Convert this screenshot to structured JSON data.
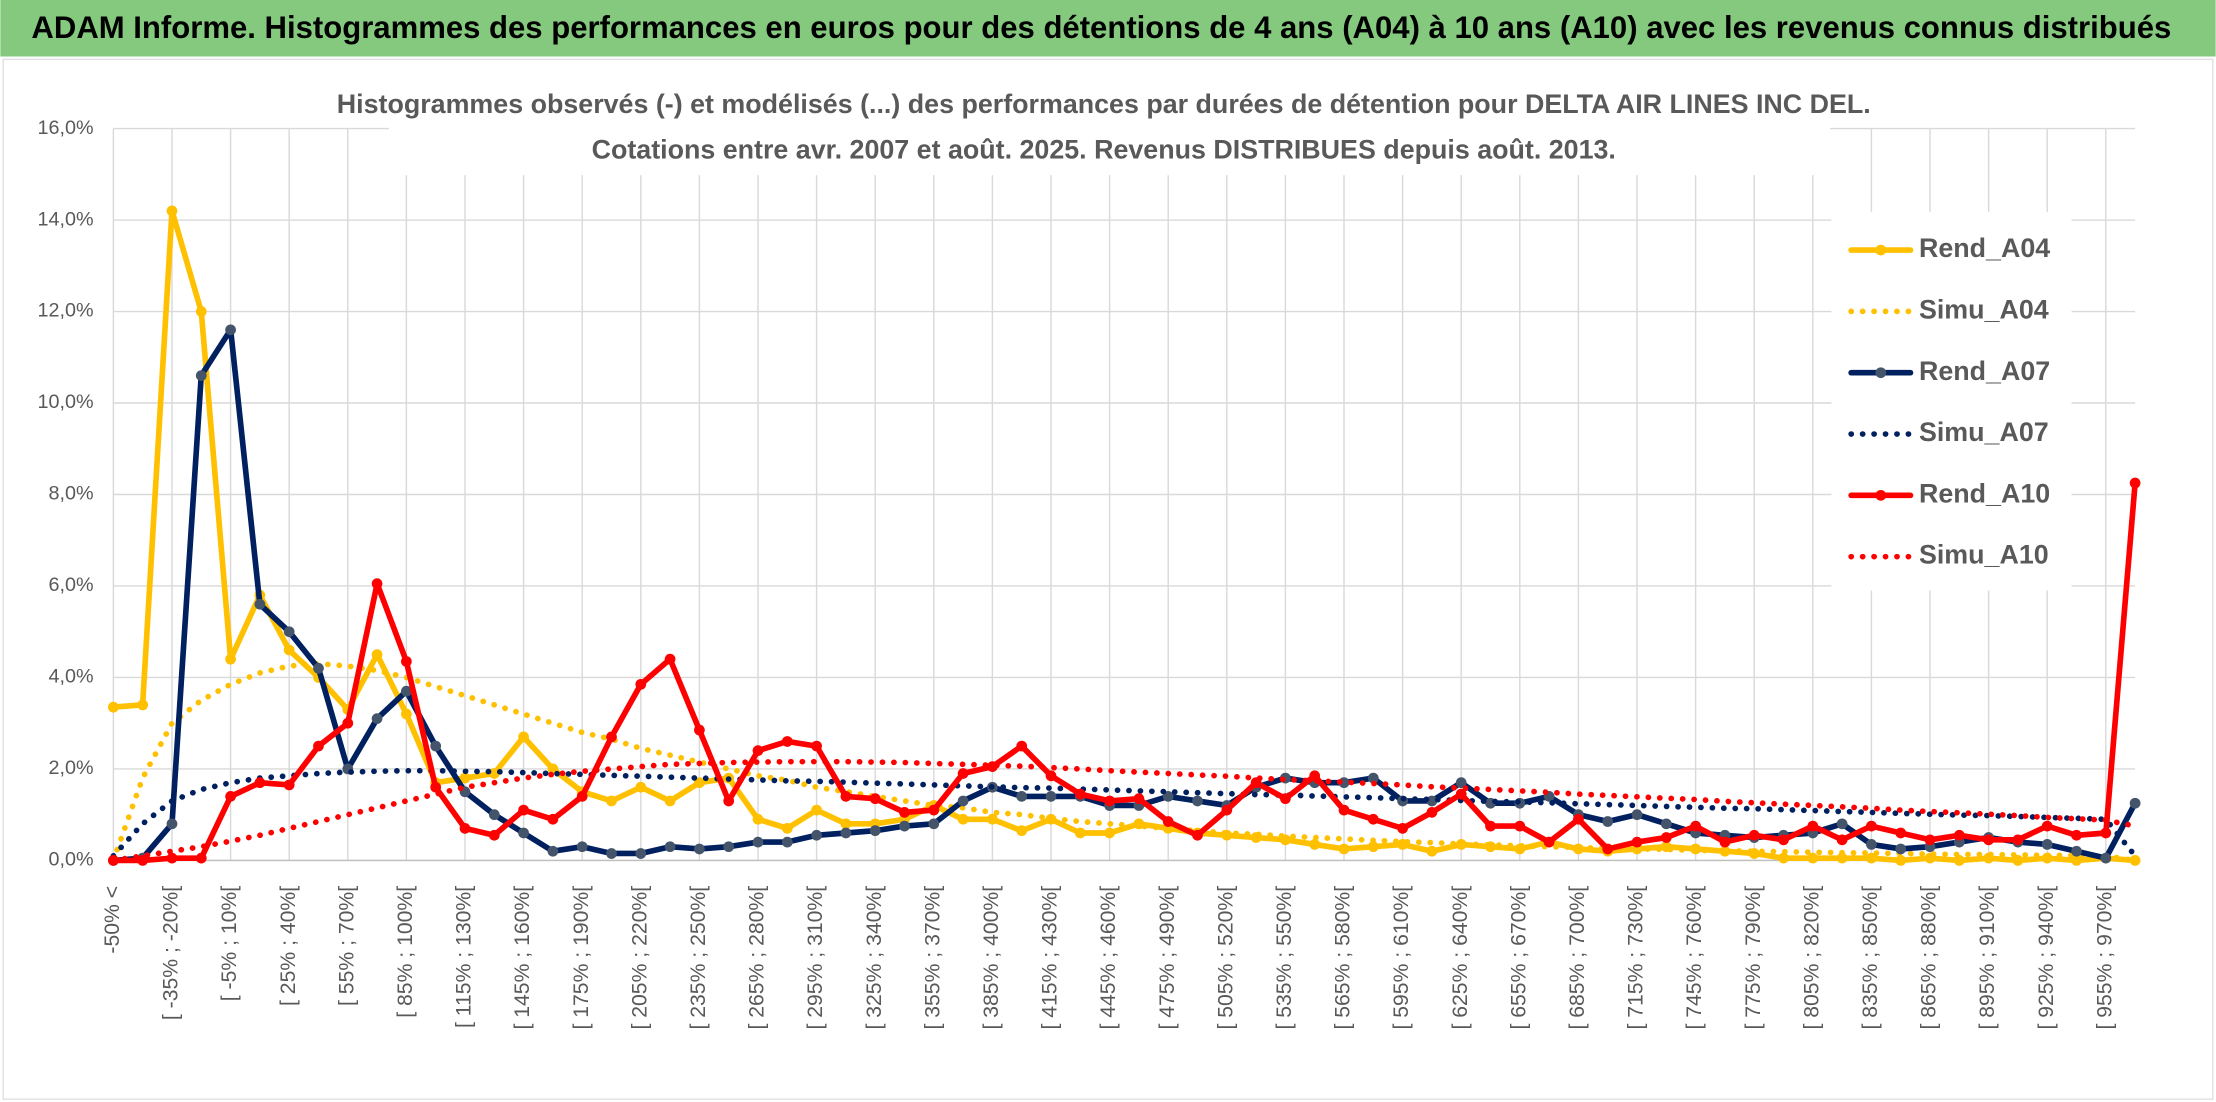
{
  "header": {
    "title": "ADAM Informe. Histogrammes des performances en euros pour des détentions de 4 ans (A04) à 10 ans (A10) avec les revenus connus distribués"
  },
  "chart_data": {
    "type": "line",
    "title": "Histogrammes observés (-) et modélisés (...) des performances par durées de détention pour DELTA AIR LINES INC DEL.",
    "subtitle": "Cotations entre avr. 2007 et août. 2025. Revenus DISTRIBUES depuis août. 2013.",
    "categories": [
      "-50% <",
      null,
      "[ -35% ; -20%[",
      null,
      "[ -5% ; 10%[",
      null,
      "[ 25% ; 40%[",
      null,
      "[ 55% ; 70%[",
      null,
      "[ 85% ; 100%[",
      null,
      "[ 115% ; 130%[",
      null,
      "[ 145% ; 160%[",
      null,
      "[ 175% ; 190%[",
      null,
      "[ 205% ; 220%[",
      null,
      "[ 235% ; 250%[",
      null,
      "[ 265% ; 280%[",
      null,
      "[ 295% ; 310%[",
      null,
      "[ 325% ; 340%[",
      null,
      "[ 355% ; 370%[",
      null,
      "[ 385% ; 400%[",
      null,
      "[ 415% ; 430%[",
      null,
      "[ 445% ; 460%[",
      null,
      "[ 475% ; 490%[",
      null,
      "[ 505% ; 520%[",
      null,
      "[ 535% ; 550%[",
      null,
      "[ 565% ; 580%[",
      null,
      "[ 595% ; 610%[",
      null,
      "[ 625% ; 640%[",
      null,
      "[ 655% ; 670%[",
      null,
      "[ 685% ; 700%[",
      null,
      "[ 715% ; 730%[",
      null,
      "[ 745% ; 760%[",
      null,
      "[ 775% ; 790%[",
      null,
      "[ 805% ; 820%[",
      null,
      "[ 835% ; 850%[",
      null,
      "[ 865% ; 880%[",
      null,
      "[ 895% ; 910%[",
      null,
      "[ 925% ; 940%[",
      null,
      "[ 955% ; 970%[",
      null
    ],
    "ylim": [
      0,
      16
    ],
    "yticks": [
      {
        "value": 0,
        "label": "0,0%"
      },
      {
        "value": 2,
        "label": "2,0%"
      },
      {
        "value": 4,
        "label": "4,0%"
      },
      {
        "value": 6,
        "label": "6,0%"
      },
      {
        "value": 8,
        "label": "8,0%"
      },
      {
        "value": 10,
        "label": "10,0%"
      },
      {
        "value": 12,
        "label": "12,0%"
      },
      {
        "value": 14,
        "label": "14,0%"
      },
      {
        "value": 16,
        "label": "16,0%"
      }
    ],
    "grid": true,
    "legend": "right",
    "series": [
      {
        "name": "Rend_A04",
        "color": "#FFC000",
        "style": "solid",
        "marker": "#FFC000",
        "values": [
          3.35,
          3.4,
          14.2,
          12.0,
          4.4,
          5.8,
          4.6,
          4.0,
          3.3,
          4.5,
          3.2,
          1.7,
          1.8,
          1.9,
          2.7,
          2.0,
          1.5,
          1.3,
          1.6,
          1.3,
          1.7,
          1.8,
          0.9,
          0.7,
          1.1,
          0.8,
          0.8,
          0.9,
          1.2,
          0.9,
          0.9,
          0.65,
          0.9,
          0.6,
          0.6,
          0.8,
          0.7,
          0.6,
          0.55,
          0.5,
          0.45,
          0.35,
          0.25,
          0.3,
          0.35,
          0.2,
          0.35,
          0.3,
          0.25,
          0.4,
          0.25,
          0.2,
          0.25,
          0.3,
          0.25,
          0.2,
          0.15,
          0.05,
          0.05,
          0.05,
          0.05,
          0,
          0.05,
          0,
          0.05,
          0,
          0.05,
          0,
          0.05,
          0
        ]
      },
      {
        "name": "Simu_A04",
        "color": "#FFC000",
        "style": "dotted",
        "values": [
          0,
          1.8,
          3.0,
          3.5,
          3.85,
          4.1,
          4.25,
          4.3,
          4.25,
          4.15,
          4.0,
          3.8,
          3.6,
          3.4,
          3.2,
          3.0,
          2.8,
          2.65,
          2.45,
          2.3,
          2.15,
          2.0,
          1.85,
          1.75,
          1.6,
          1.5,
          1.4,
          1.3,
          1.2,
          1.15,
          1.05,
          1.0,
          0.92,
          0.85,
          0.8,
          0.75,
          0.7,
          0.65,
          0.6,
          0.57,
          0.53,
          0.5,
          0.47,
          0.44,
          0.41,
          0.39,
          0.36,
          0.34,
          0.32,
          0.3,
          0.28,
          0.27,
          0.25,
          0.24,
          0.22,
          0.21,
          0.2,
          0.19,
          0.18,
          0.17,
          0.16,
          0.15,
          0.14,
          0.13,
          0.13,
          0.12,
          0.11,
          0.11,
          0.1,
          0
        ]
      },
      {
        "name": "Rend_A07",
        "color": "#002060",
        "style": "solid",
        "marker": "#44546A",
        "values": [
          0,
          0.05,
          0.8,
          10.6,
          11.6,
          5.6,
          5.0,
          4.2,
          2.0,
          3.1,
          3.7,
          2.5,
          1.5,
          1.0,
          0.6,
          0.2,
          0.3,
          0.15,
          0.15,
          0.3,
          0.25,
          0.3,
          0.4,
          0.4,
          0.55,
          0.6,
          0.65,
          0.75,
          0.8,
          1.3,
          1.6,
          1.4,
          1.4,
          1.4,
          1.2,
          1.2,
          1.4,
          1.3,
          1.2,
          1.6,
          1.8,
          1.7,
          1.7,
          1.8,
          1.3,
          1.3,
          1.7,
          1.25,
          1.25,
          1.4,
          1.0,
          0.85,
          1.0,
          0.8,
          0.6,
          0.55,
          0.5,
          0.55,
          0.6,
          0.8,
          0.35,
          0.25,
          0.3,
          0.4,
          0.5,
          0.4,
          0.35,
          0.2,
          0.05,
          1.25
        ]
      },
      {
        "name": "Simu_A07",
        "color": "#002060",
        "style": "dotted",
        "values": [
          0.1,
          0.8,
          1.3,
          1.55,
          1.7,
          1.8,
          1.85,
          1.9,
          1.93,
          1.95,
          1.96,
          1.96,
          1.95,
          1.94,
          1.92,
          1.9,
          1.88,
          1.86,
          1.84,
          1.82,
          1.8,
          1.78,
          1.76,
          1.74,
          1.73,
          1.71,
          1.69,
          1.67,
          1.65,
          1.63,
          1.61,
          1.59,
          1.58,
          1.56,
          1.54,
          1.52,
          1.5,
          1.48,
          1.46,
          1.44,
          1.43,
          1.41,
          1.39,
          1.37,
          1.35,
          1.33,
          1.31,
          1.29,
          1.28,
          1.26,
          1.24,
          1.22,
          1.2,
          1.18,
          1.16,
          1.14,
          1.13,
          1.11,
          1.09,
          1.07,
          1.05,
          1.03,
          1.01,
          0.99,
          0.98,
          0.96,
          0.94,
          0.92,
          0.9,
          0.1
        ]
      },
      {
        "name": "Rend_A10",
        "color": "#FF0000",
        "style": "solid",
        "marker": "#FF0000",
        "values": [
          0,
          0,
          0.05,
          0.05,
          1.4,
          1.7,
          1.65,
          2.5,
          3.0,
          6.05,
          4.35,
          1.6,
          0.7,
          0.55,
          1.1,
          0.9,
          1.4,
          2.7,
          3.85,
          4.4,
          2.85,
          1.3,
          2.4,
          2.6,
          2.5,
          1.4,
          1.35,
          1.05,
          1.1,
          1.9,
          2.05,
          2.5,
          1.85,
          1.45,
          1.3,
          1.35,
          0.85,
          0.55,
          1.1,
          1.7,
          1.35,
          1.85,
          1.1,
          0.9,
          0.7,
          1.05,
          1.45,
          0.75,
          0.75,
          0.4,
          0.9,
          0.25,
          0.4,
          0.5,
          0.75,
          0.4,
          0.55,
          0.45,
          0.75,
          0.45,
          0.75,
          0.6,
          0.45,
          0.55,
          0.45,
          0.45,
          0.75,
          0.55,
          0.6,
          8.25
        ]
      },
      {
        "name": "Simu_A10",
        "color": "#FF0000",
        "style": "dotted",
        "values": [
          0,
          0.1,
          0.2,
          0.3,
          0.42,
          0.55,
          0.7,
          0.85,
          1.0,
          1.15,
          1.3,
          1.45,
          1.6,
          1.7,
          1.8,
          1.88,
          1.95,
          2.0,
          2.05,
          2.1,
          2.12,
          2.14,
          2.15,
          2.16,
          2.16,
          2.16,
          2.15,
          2.14,
          2.12,
          2.1,
          2.08,
          2.06,
          2.03,
          2.0,
          1.96,
          1.93,
          1.9,
          1.87,
          1.84,
          1.8,
          1.77,
          1.74,
          1.71,
          1.68,
          1.65,
          1.61,
          1.58,
          1.55,
          1.52,
          1.49,
          1.45,
          1.42,
          1.39,
          1.36,
          1.33,
          1.29,
          1.26,
          1.23,
          1.2,
          1.17,
          1.14,
          1.1,
          1.07,
          1.04,
          1.01,
          0.98,
          0.94,
          0.91,
          0.88,
          0.75
        ]
      }
    ]
  }
}
